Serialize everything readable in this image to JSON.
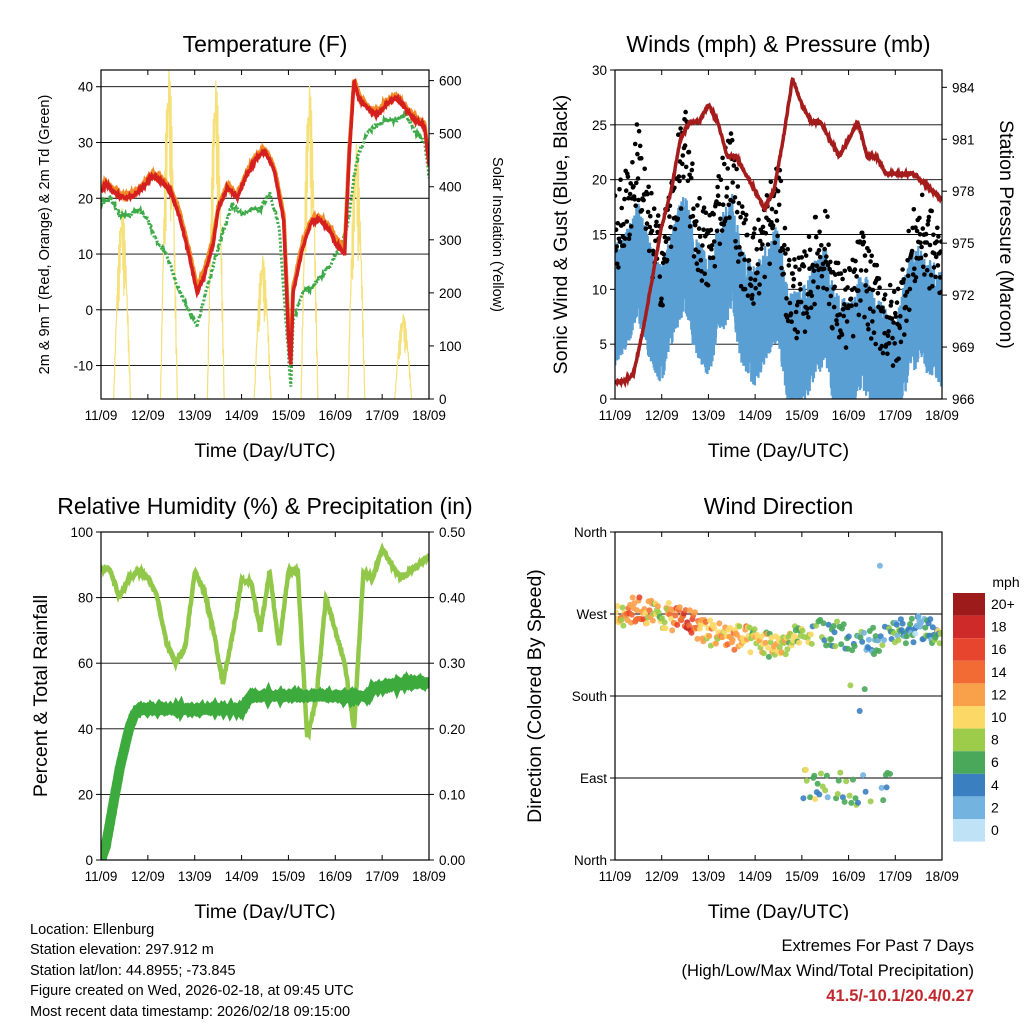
{
  "colors": {
    "temp2m": "#d62020",
    "temp9m": "#f08c28",
    "dewpoint": "#3caa46",
    "insolation": "#f5e07a",
    "wind": "#5a9fd4",
    "gust": "#000000",
    "pressure": "#a51c1c",
    "rh": "#92c84a",
    "precip": "#3daa3d",
    "extremes": "#c0282d"
  },
  "chart_data": [
    {
      "id": "temperature",
      "type": "line",
      "title": "Temperature (F)",
      "xlabel": "Time (Day/UTC)",
      "ylabel": "2m & 9m T (Red, Orange) & 2m Td (Green)",
      "y2label": "Solar Insolation (Yellow)",
      "x_ticks": [
        "11/09",
        "12/09",
        "13/09",
        "14/09",
        "15/09",
        "16/09",
        "17/09",
        "18/09"
      ],
      "xlim": [
        0,
        7
      ],
      "ylim": [
        -16,
        43
      ],
      "y_ticks": [
        -10,
        0,
        10,
        20,
        30,
        40
      ],
      "y2lim": [
        0,
        620
      ],
      "y2_ticks": [
        0,
        100,
        200,
        300,
        400,
        500,
        600
      ],
      "series": [
        {
          "name": "2m T",
          "x": [
            0,
            0.1,
            0.3,
            0.5,
            0.7,
            0.9,
            1.1,
            1.3,
            1.5,
            1.7,
            1.9,
            2.0,
            2.05,
            2.2,
            2.4,
            2.5,
            2.7,
            2.9,
            3.1,
            3.3,
            3.5,
            3.7,
            3.9,
            4.0,
            4.05,
            4.1,
            4.3,
            4.5,
            4.7,
            4.9,
            5.0,
            5.2,
            5.3,
            5.4,
            5.5,
            5.7,
            5.9,
            6.1,
            6.3,
            6.5,
            6.7,
            6.9,
            7.0
          ],
          "values": [
            21,
            22.5,
            21,
            20,
            20.5,
            22,
            24,
            23,
            21,
            16,
            9,
            5,
            3,
            6,
            12,
            18,
            22,
            20,
            24,
            27,
            28.5,
            25,
            16,
            -5,
            -10,
            3,
            11,
            16,
            16,
            14,
            12,
            10,
            28,
            41,
            38,
            36,
            35,
            37,
            38,
            36,
            34,
            33,
            26
          ]
        },
        {
          "name": "9m T",
          "x": [
            0,
            0.1,
            0.3,
            0.5,
            0.7,
            0.9,
            1.1,
            1.3,
            1.5,
            1.7,
            1.9,
            2.0,
            2.05,
            2.2,
            2.4,
            2.5,
            2.7,
            2.9,
            3.1,
            3.3,
            3.5,
            3.7,
            3.9,
            4.0,
            4.05,
            4.1,
            4.3,
            4.5,
            4.7,
            4.9,
            5.0,
            5.2,
            5.3,
            5.4,
            5.5,
            5.7,
            5.9,
            6.1,
            6.3,
            6.5,
            6.7,
            6.9,
            7.0
          ],
          "values": [
            21.5,
            23,
            21.5,
            20.5,
            21,
            22.5,
            24.5,
            23.5,
            21.5,
            17,
            10,
            6,
            4,
            7,
            13,
            18.5,
            22.5,
            20.5,
            24.5,
            27.5,
            29,
            25.5,
            17,
            -3,
            -8,
            4,
            12,
            16.5,
            16.5,
            14.5,
            13,
            11,
            29,
            41.5,
            38.5,
            36.5,
            35.5,
            37.5,
            38.5,
            36.5,
            34.5,
            33.5,
            27
          ]
        },
        {
          "name": "2m Td",
          "x": [
            0,
            0.2,
            0.4,
            0.6,
            0.8,
            1.0,
            1.2,
            1.4,
            1.6,
            1.8,
            2.0,
            2.05,
            2.2,
            2.4,
            2.6,
            2.8,
            3.0,
            3.2,
            3.4,
            3.6,
            3.8,
            4.0,
            4.05,
            4.1,
            4.3,
            4.5,
            4.7,
            4.9,
            5.0,
            5.2,
            5.3,
            5.4,
            5.5,
            5.7,
            5.9,
            6.1,
            6.3,
            6.5,
            6.7,
            6.9,
            7.0
          ],
          "values": [
            19,
            20,
            17,
            17,
            18,
            16,
            12,
            10,
            5,
            1,
            -2,
            -3,
            2,
            8,
            14,
            19,
            17,
            18,
            18,
            21,
            15,
            -8,
            -14,
            -2,
            3,
            4,
            6,
            8,
            10,
            13,
            17,
            24,
            28,
            32,
            33,
            34,
            34,
            35,
            32,
            30,
            24
          ]
        },
        {
          "name": "Solar Insolation",
          "axis": "y2",
          "peaks": [
            {
              "x": 0.45,
              "v": 360
            },
            {
              "x": 1.45,
              "v": 620
            },
            {
              "x": 2.45,
              "v": 600
            },
            {
              "x": 3.45,
              "v": 270
            },
            {
              "x": 4.45,
              "v": 590
            },
            {
              "x": 5.45,
              "v": 480
            },
            {
              "x": 6.45,
              "v": 160
            }
          ]
        }
      ]
    },
    {
      "id": "winds",
      "type": "scatter",
      "title": "Winds (mph) & Pressure (mb)",
      "xlabel": "Time (Day/UTC)",
      "ylabel": "Sonic Wind & Gust (Blue, Black)",
      "y2label": "Station Pressure (Maroon)",
      "x_ticks": [
        "11/09",
        "12/09",
        "13/09",
        "14/09",
        "15/09",
        "16/09",
        "17/09",
        "18/09"
      ],
      "xlim": [
        0,
        7
      ],
      "ylim": [
        0,
        30
      ],
      "y_ticks": [
        0,
        5,
        10,
        15,
        20,
        25,
        30
      ],
      "y2lim": [
        966,
        985
      ],
      "y2_ticks": [
        966,
        969,
        972,
        975,
        978,
        981,
        984
      ],
      "series": [
        {
          "name": "Wind speed (mean envelope)",
          "x": [
            0,
            0.3,
            0.5,
            0.7,
            1.0,
            1.3,
            1.5,
            1.7,
            2.0,
            2.3,
            2.5,
            2.7,
            3.0,
            3.3,
            3.5,
            3.7,
            4.0,
            4.3,
            4.5,
            4.7,
            5.0,
            5.3,
            5.5,
            5.7,
            6.0,
            6.3,
            6.5,
            6.7,
            7.0
          ],
          "values": [
            10,
            12,
            14,
            11,
            8,
            13,
            15,
            11,
            9,
            13,
            15,
            10,
            8,
            11,
            12,
            6,
            6,
            9,
            10,
            6,
            5,
            8,
            6,
            5,
            3,
            9,
            10,
            9,
            8
          ]
        },
        {
          "name": "Gust (mean envelope)",
          "x": [
            0,
            0.3,
            0.5,
            0.7,
            1.0,
            1.3,
            1.5,
            1.7,
            2.0,
            2.3,
            2.5,
            2.7,
            3.0,
            3.3,
            3.5,
            3.7,
            4.0,
            4.3,
            4.5,
            4.7,
            5.0,
            5.3,
            5.5,
            5.7,
            6.0,
            6.3,
            6.5,
            6.7,
            7.0
          ],
          "values": [
            15,
            18,
            22,
            16,
            12,
            19,
            23,
            16,
            13,
            19,
            21,
            14,
            12,
            16,
            18,
            10,
            9,
            13,
            14,
            9,
            8,
            12,
            9,
            8,
            6,
            12,
            15,
            14,
            12
          ]
        },
        {
          "name": "Station Pressure",
          "axis": "y2",
          "x": [
            0,
            0.2,
            0.4,
            0.6,
            0.8,
            1.0,
            1.2,
            1.4,
            1.6,
            1.8,
            2.0,
            2.2,
            2.4,
            2.6,
            2.8,
            3.0,
            3.2,
            3.4,
            3.6,
            3.8,
            4.0,
            4.2,
            4.4,
            4.6,
            4.8,
            5.0,
            5.2,
            5.4,
            5.6,
            5.8,
            6.0,
            6.2,
            6.4,
            6.6,
            6.8,
            7.0
          ],
          "values": [
            967,
            967,
            967.5,
            970,
            973,
            976,
            978,
            981,
            982,
            982,
            983,
            982,
            980,
            980,
            979,
            978,
            977,
            978,
            981,
            984.5,
            983,
            982,
            982,
            981,
            980,
            981,
            982,
            980,
            980,
            979,
            979,
            979,
            979,
            978.5,
            978,
            977.5
          ]
        }
      ]
    },
    {
      "id": "humidity",
      "type": "line",
      "title": "Relative Humidity (%) & Precipitation (in)",
      "xlabel": "Time (Day/UTC)",
      "ylabel": "Percent & Total Rainfall",
      "x_ticks": [
        "11/09",
        "12/09",
        "13/09",
        "14/09",
        "15/09",
        "16/09",
        "17/09",
        "18/09"
      ],
      "xlim": [
        0,
        7
      ],
      "ylim": [
        0,
        100
      ],
      "y_ticks": [
        0,
        20,
        40,
        60,
        80,
        100
      ],
      "y2lim": [
        0,
        0.5
      ],
      "y2_ticks": [
        "0.00",
        "0.10",
        "0.20",
        "0.30",
        "0.40",
        "0.50"
      ],
      "series": [
        {
          "name": "Relative Humidity",
          "x": [
            0,
            0.2,
            0.4,
            0.6,
            0.8,
            1.0,
            1.2,
            1.4,
            1.6,
            1.8,
            2.0,
            2.2,
            2.4,
            2.6,
            2.8,
            3.0,
            3.2,
            3.4,
            3.6,
            3.8,
            4.0,
            4.2,
            4.4,
            4.6,
            4.8,
            5.0,
            5.2,
            5.4,
            5.6,
            5.8,
            6.0,
            6.2,
            6.4,
            6.6,
            6.8,
            7.0
          ],
          "values": [
            89,
            88,
            80,
            86,
            88,
            86,
            80,
            66,
            60,
            65,
            88,
            82,
            70,
            54,
            68,
            85,
            85,
            70,
            88,
            65,
            88,
            88,
            37,
            50,
            80,
            70,
            60,
            40,
            88,
            86,
            95,
            90,
            86,
            88,
            90,
            93
          ]
        },
        {
          "name": "Total Precipitation",
          "axis": "y2",
          "x": [
            0,
            0.1,
            0.2,
            0.3,
            0.4,
            0.5,
            0.6,
            0.7,
            0.8,
            1.0,
            2.0,
            3.0,
            3.2,
            4.0,
            5.0,
            5.7,
            5.8,
            6.0,
            6.5,
            7.0
          ],
          "values": [
            0,
            0.02,
            0.06,
            0.1,
            0.14,
            0.17,
            0.2,
            0.22,
            0.23,
            0.23,
            0.23,
            0.23,
            0.25,
            0.25,
            0.25,
            0.25,
            0.26,
            0.265,
            0.27,
            0.27
          ]
        }
      ]
    },
    {
      "id": "direction",
      "type": "scatter",
      "title": "Wind Direction",
      "xlabel": "Time (Day/UTC)",
      "ylabel": "Direction (Colored By Speed)",
      "x_ticks": [
        "11/09",
        "12/09",
        "13/09",
        "14/09",
        "15/09",
        "16/09",
        "17/09",
        "18/09"
      ],
      "xlim": [
        0,
        7
      ],
      "ylim": [
        0,
        360
      ],
      "y_ticks": [
        {
          "v": 0,
          "label": "North"
        },
        {
          "v": 90,
          "label": "East"
        },
        {
          "v": 180,
          "label": "South"
        },
        {
          "v": 270,
          "label": "West"
        },
        {
          "v": 360,
          "label": "North"
        }
      ],
      "legend": {
        "title": "mph",
        "labels": [
          "20+",
          "18",
          "16",
          "14",
          "12",
          "10",
          "8",
          "6",
          "4",
          "2",
          "0"
        ],
        "colors": [
          "#9e1b1b",
          "#cf2a2a",
          "#e8452e",
          "#f26b35",
          "#f9a04a",
          "#fcd866",
          "#9ccc4a",
          "#4aa85a",
          "#3a7fc0",
          "#73b3e0",
          "#bfe2f7"
        ]
      },
      "series": [
        {
          "name": "direction (mean)",
          "x": [
            0,
            0.5,
            1.0,
            1.5,
            2.0,
            2.5,
            3.0,
            3.5,
            4.0,
            4.5,
            5.0,
            5.5,
            6.0,
            6.5,
            7.0
          ],
          "values": [
            270,
            275,
            268,
            265,
            250,
            245,
            240,
            235,
            245,
            250,
            245,
            240,
            250,
            255,
            245
          ]
        },
        {
          "name": "speed (mean)",
          "x": [
            0,
            0.5,
            1.0,
            1.5,
            2.0,
            2.5,
            3.0,
            3.5,
            4.0,
            4.5,
            5.0,
            5.5,
            6.0,
            6.5,
            7.0
          ],
          "values": [
            10,
            14,
            8,
            16,
            10,
            12,
            9,
            10,
            8,
            5,
            6,
            4,
            5,
            3,
            7
          ]
        }
      ]
    }
  ],
  "footer": {
    "location": "Location: Ellenburg",
    "elevation": "Station elevation: 297.912 m",
    "latlon": "Station lat/lon: 44.8955; -73.845",
    "created": "Figure created on Wed, 2026-02-18, at 09:45 UTC",
    "recent": "Most recent data timestamp: 2026/02/18 09:15:00"
  },
  "extremes": {
    "title": "Extremes For Past 7 Days",
    "subtitle": "(High/Low/Max Wind/Total Precipitation)",
    "values": "41.5/-10.1/20.4/0.27"
  }
}
